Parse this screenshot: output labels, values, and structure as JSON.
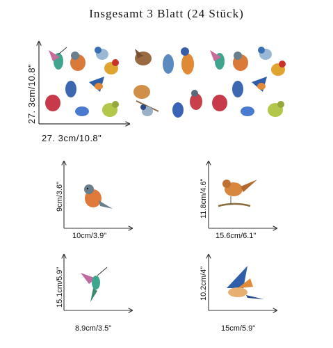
{
  "title": "Insgesamt 3 Blatt (24 Stück)",
  "sheet": {
    "width_label": "27. 3cm/10.8\"",
    "height_label": "27. 3cm/10.8\""
  },
  "items": [
    {
      "name": "robin",
      "width_label": "10cm/3.9\"",
      "height_label": "9cm/3.6\""
    },
    {
      "name": "wren",
      "width_label": "15.6cm/6.1\"",
      "height_label": "11.8cm/4.6\""
    },
    {
      "name": "hummingbird",
      "width_label": "8.9cm/3.5\"",
      "height_label": "15.1cm/5.9\""
    },
    {
      "name": "swallow",
      "width_label": "15cm/5.9\"",
      "height_label": "10.2cm/4\""
    }
  ]
}
